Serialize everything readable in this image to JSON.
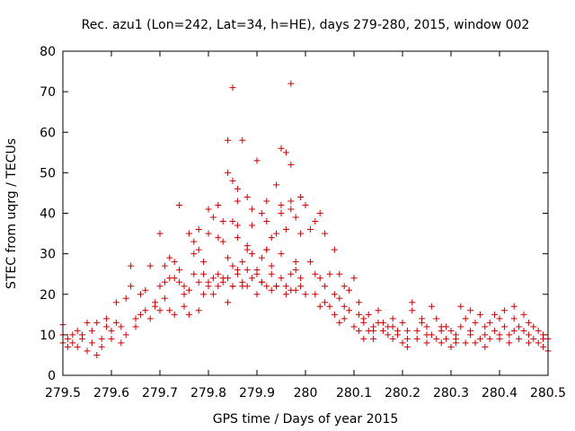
{
  "chart_data": {
    "type": "scatter",
    "title": "Rec. azu1 (Lon=242, Lat=34, h=HE), days 279-280, 2015, window 002",
    "xlabel": "GPS time / Days of year 2015",
    "ylabel": "STEC from uqrg / TECUs",
    "xlim": [
      279.5,
      280.5
    ],
    "ylim": [
      0,
      80
    ],
    "x_ticks": [
      "279.5",
      "279.6",
      "279.7",
      "279.8",
      "279.9",
      "280",
      "280.1",
      "280.2",
      "280.3",
      "280.4",
      "280.5"
    ],
    "y_ticks": [
      "0",
      "10",
      "20",
      "30",
      "40",
      "50",
      "60",
      "70",
      "80"
    ],
    "grid": false,
    "marker": "+",
    "color": "#cc0000",
    "series": [
      {
        "points": [
          [
            279.5,
            8
          ],
          [
            279.5,
            10
          ],
          [
            279.5,
            12.5
          ],
          [
            279.51,
            7
          ],
          [
            279.51,
            9
          ],
          [
            279.52,
            10
          ],
          [
            279.52,
            8
          ],
          [
            279.53,
            11
          ],
          [
            279.53,
            7
          ],
          [
            279.54,
            9
          ],
          [
            279.54,
            10
          ],
          [
            279.55,
            6
          ],
          [
            279.55,
            13
          ],
          [
            279.56,
            8
          ],
          [
            279.56,
            11
          ],
          [
            279.57,
            5
          ],
          [
            279.57,
            13
          ],
          [
            279.58,
            9
          ],
          [
            279.58,
            7
          ],
          [
            279.59,
            14
          ],
          [
            279.59,
            12
          ],
          [
            279.6,
            9
          ],
          [
            279.6,
            11
          ],
          [
            279.61,
            13
          ],
          [
            279.61,
            18
          ],
          [
            279.62,
            8
          ],
          [
            279.62,
            12
          ],
          [
            279.63,
            19
          ],
          [
            279.63,
            10
          ],
          [
            279.64,
            22
          ],
          [
            279.64,
            27
          ],
          [
            279.65,
            14
          ],
          [
            279.65,
            12
          ],
          [
            279.66,
            15
          ],
          [
            279.66,
            20
          ],
          [
            279.67,
            16
          ],
          [
            279.67,
            21
          ],
          [
            279.68,
            27
          ],
          [
            279.68,
            14
          ],
          [
            279.69,
            18
          ],
          [
            279.69,
            17
          ],
          [
            279.7,
            22
          ],
          [
            279.7,
            16
          ],
          [
            279.71,
            23
          ],
          [
            279.71,
            19
          ],
          [
            279.72,
            24
          ],
          [
            279.72,
            16
          ],
          [
            279.73,
            28
          ],
          [
            279.73,
            15
          ],
          [
            279.74,
            26
          ],
          [
            279.74,
            42
          ],
          [
            279.75,
            17
          ],
          [
            279.75,
            22
          ],
          [
            279.76,
            35
          ],
          [
            279.76,
            15
          ],
          [
            279.77,
            30
          ],
          [
            279.77,
            33
          ],
          [
            279.78,
            31
          ],
          [
            279.78,
            36
          ],
          [
            279.78,
            16
          ],
          [
            279.79,
            28
          ],
          [
            279.79,
            25
          ],
          [
            279.8,
            22
          ],
          [
            279.8,
            35
          ],
          [
            279.81,
            39
          ],
          [
            279.81,
            20
          ],
          [
            279.82,
            34
          ],
          [
            279.82,
            25
          ],
          [
            279.83,
            24
          ],
          [
            279.83,
            33
          ],
          [
            279.84,
            18
          ],
          [
            279.84,
            29
          ],
          [
            279.85,
            27
          ],
          [
            279.85,
            22
          ],
          [
            279.86,
            26
          ],
          [
            279.86,
            37
          ],
          [
            279.87,
            22
          ],
          [
            279.87,
            28
          ],
          [
            279.88,
            32
          ],
          [
            279.88,
            22
          ],
          [
            279.89,
            30
          ],
          [
            279.89,
            37
          ],
          [
            279.9,
            20
          ],
          [
            279.9,
            26
          ],
          [
            279.91,
            40
          ],
          [
            279.91,
            23
          ],
          [
            279.92,
            38
          ],
          [
            279.92,
            31
          ],
          [
            279.93,
            25
          ],
          [
            279.93,
            34
          ],
          [
            279.94,
            22
          ],
          [
            279.94,
            35
          ],
          [
            279.95,
            30
          ],
          [
            279.95,
            40
          ],
          [
            279.96,
            22
          ],
          [
            279.96,
            36
          ],
          [
            279.97,
            21
          ],
          [
            279.97,
            41
          ],
          [
            279.98,
            21
          ],
          [
            279.98,
            26
          ],
          [
            279.99,
            44
          ],
          [
            279.99,
            24
          ],
          [
            280.0,
            42
          ],
          [
            280.0,
            20
          ],
          [
            280.01,
            28
          ],
          [
            280.01,
            36
          ],
          [
            280.02,
            20
          ],
          [
            280.02,
            38
          ],
          [
            280.03,
            24
          ],
          [
            280.03,
            40
          ],
          [
            280.04,
            22
          ],
          [
            280.04,
            35
          ],
          [
            280.05,
            25
          ],
          [
            280.05,
            17
          ],
          [
            280.06,
            20
          ],
          [
            280.06,
            15
          ],
          [
            280.07,
            25
          ],
          [
            280.07,
            13
          ],
          [
            280.08,
            22
          ],
          [
            280.08,
            14
          ],
          [
            280.09,
            21
          ],
          [
            280.09,
            16
          ],
          [
            280.1,
            24
          ],
          [
            280.1,
            12
          ],
          [
            280.11,
            18
          ],
          [
            280.11,
            11
          ],
          [
            280.12,
            14
          ],
          [
            280.12,
            13
          ],
          [
            280.13,
            15
          ],
          [
            280.13,
            11
          ],
          [
            280.14,
            12
          ],
          [
            280.14,
            9
          ],
          [
            280.15,
            13
          ],
          [
            280.15,
            16
          ],
          [
            280.16,
            11
          ],
          [
            280.16,
            13
          ],
          [
            280.17,
            10
          ],
          [
            280.17,
            12
          ],
          [
            280.18,
            9
          ],
          [
            280.18,
            14
          ],
          [
            280.19,
            11
          ],
          [
            280.19,
            10
          ],
          [
            280.2,
            8
          ],
          [
            280.2,
            13
          ],
          [
            280.21,
            9
          ],
          [
            280.21,
            7
          ],
          [
            280.22,
            16
          ],
          [
            280.22,
            18
          ],
          [
            280.23,
            11
          ],
          [
            280.23,
            9
          ],
          [
            280.24,
            13
          ],
          [
            280.24,
            14
          ],
          [
            280.25,
            8
          ],
          [
            280.25,
            12
          ],
          [
            280.26,
            10
          ],
          [
            280.26,
            17
          ],
          [
            280.27,
            9
          ],
          [
            280.27,
            14
          ],
          [
            280.28,
            8
          ],
          [
            280.28,
            11
          ],
          [
            280.29,
            12
          ],
          [
            280.29,
            9
          ],
          [
            280.3,
            7
          ],
          [
            280.3,
            11
          ],
          [
            280.31,
            9
          ],
          [
            280.31,
            10
          ],
          [
            280.32,
            12
          ],
          [
            280.32,
            17
          ],
          [
            280.33,
            8
          ],
          [
            280.33,
            14
          ],
          [
            280.34,
            16
          ],
          [
            280.34,
            11
          ],
          [
            280.35,
            13
          ],
          [
            280.35,
            8
          ],
          [
            280.36,
            9
          ],
          [
            280.36,
            15
          ],
          [
            280.37,
            10
          ],
          [
            280.37,
            12
          ],
          [
            280.38,
            9
          ],
          [
            280.38,
            13
          ],
          [
            280.39,
            11
          ],
          [
            280.39,
            15
          ],
          [
            280.4,
            14
          ],
          [
            280.4,
            9
          ],
          [
            280.41,
            12
          ],
          [
            280.41,
            16
          ],
          [
            280.42,
            10
          ],
          [
            280.42,
            8
          ],
          [
            280.43,
            14
          ],
          [
            280.43,
            17
          ],
          [
            280.44,
            9
          ],
          [
            280.44,
            12
          ],
          [
            280.45,
            15
          ],
          [
            280.45,
            11
          ],
          [
            280.46,
            10
          ],
          [
            280.46,
            13
          ],
          [
            280.47,
            9
          ],
          [
            280.47,
            12
          ],
          [
            280.48,
            8
          ],
          [
            280.48,
            11
          ],
          [
            280.49,
            10
          ],
          [
            280.49,
            7
          ],
          [
            280.5,
            9
          ],
          [
            280.5,
            6
          ],
          [
            279.84,
            58
          ],
          [
            279.85,
            71
          ],
          [
            279.87,
            58
          ],
          [
            279.9,
            53
          ],
          [
            279.95,
            56
          ],
          [
            279.96,
            55
          ],
          [
            279.97,
            72
          ],
          [
            279.97,
            52
          ],
          [
            279.84,
            50
          ],
          [
            279.85,
            48
          ],
          [
            279.86,
            46
          ],
          [
            279.88,
            44
          ],
          [
            279.89,
            41
          ],
          [
            279.92,
            43
          ],
          [
            279.94,
            47
          ],
          [
            279.95,
            42
          ],
          [
            279.92,
            31
          ],
          [
            279.93,
            27
          ],
          [
            279.91,
            29
          ],
          [
            279.86,
            34
          ],
          [
            279.88,
            31
          ],
          [
            279.83,
            38
          ],
          [
            279.82,
            42
          ],
          [
            279.8,
            41
          ],
          [
            279.86,
            43
          ],
          [
            279.85,
            38
          ],
          [
            279.97,
            43
          ],
          [
            279.98,
            39
          ],
          [
            279.99,
            35
          ],
          [
            279.99,
            22
          ],
          [
            279.7,
            35
          ],
          [
            279.71,
            27
          ],
          [
            279.72,
            29
          ],
          [
            279.73,
            24
          ],
          [
            279.74,
            23
          ],
          [
            279.75,
            20
          ],
          [
            279.76,
            21
          ],
          [
            279.77,
            25
          ],
          [
            279.78,
            23
          ],
          [
            279.79,
            20
          ],
          [
            279.8,
            23
          ],
          [
            279.81,
            24
          ],
          [
            279.82,
            22
          ],
          [
            279.83,
            23
          ],
          [
            279.84,
            24
          ],
          [
            279.85,
            22
          ],
          [
            279.86,
            25
          ],
          [
            279.87,
            23
          ],
          [
            279.88,
            26
          ],
          [
            279.89,
            24
          ],
          [
            279.9,
            25
          ],
          [
            279.91,
            23
          ],
          [
            279.92,
            22
          ],
          [
            279.93,
            21
          ],
          [
            279.94,
            22
          ],
          [
            279.95,
            24
          ],
          [
            279.96,
            20
          ],
          [
            279.97,
            25
          ],
          [
            279.98,
            28
          ],
          [
            280.02,
            25
          ],
          [
            280.03,
            17
          ],
          [
            280.04,
            18
          ],
          [
            280.06,
            31
          ],
          [
            280.07,
            19
          ],
          [
            280.08,
            17
          ],
          [
            280.11,
            15
          ],
          [
            280.12,
            9
          ],
          [
            280.14,
            11
          ],
          [
            280.18,
            12
          ],
          [
            280.21,
            11
          ],
          [
            280.25,
            10
          ],
          [
            280.28,
            12
          ],
          [
            280.31,
            8
          ],
          [
            280.34,
            10
          ],
          [
            280.37,
            7
          ],
          [
            280.4,
            10
          ],
          [
            280.43,
            11
          ],
          [
            280.46,
            8
          ],
          [
            280.49,
            9
          ]
        ]
      }
    ]
  }
}
